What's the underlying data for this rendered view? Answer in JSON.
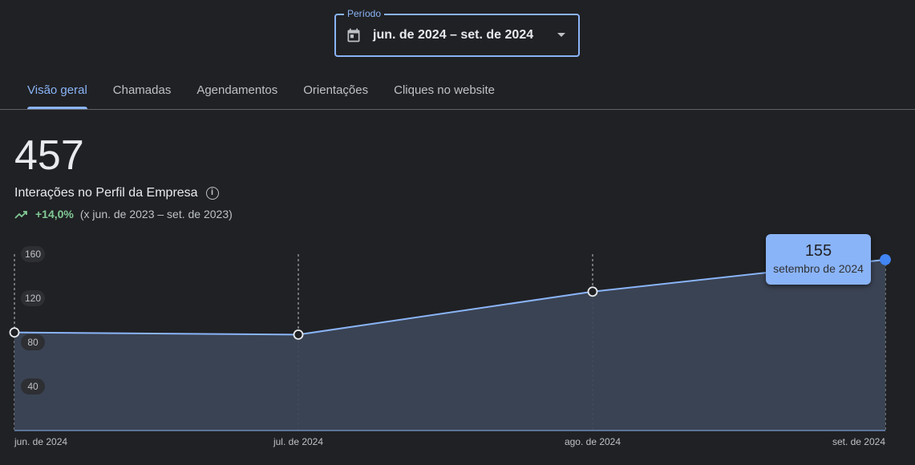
{
  "period": {
    "label": "Período",
    "value": "jun. de 2024 – set. de 2024",
    "icon": "calendar-icon"
  },
  "tabs": [
    {
      "label": "Visão geral",
      "active": true
    },
    {
      "label": "Chamadas"
    },
    {
      "label": "Agendamentos"
    },
    {
      "label": "Orientações"
    },
    {
      "label": "Cliques no website"
    }
  ],
  "summary": {
    "total": "457",
    "metric": "Interações no Perfil da Empresa",
    "change": "+14,0%",
    "comparison": "(x jun. de 2023 – set. de 2023)"
  },
  "tooltip": {
    "value": "155",
    "label": "setembro de 2024"
  },
  "colors": {
    "accent": "#8ab4f8",
    "positive": "#81c995",
    "area": "#3c4656"
  },
  "chart_data": {
    "type": "area",
    "categories": [
      "jun. de 2024",
      "jul. de 2024",
      "ago. de 2024",
      "set. de 2024"
    ],
    "values": [
      89,
      87,
      126,
      155
    ],
    "yticks": [
      "40",
      "80",
      "120",
      "160"
    ],
    "ylim": [
      0,
      160
    ],
    "grid": "vertical dashed"
  }
}
